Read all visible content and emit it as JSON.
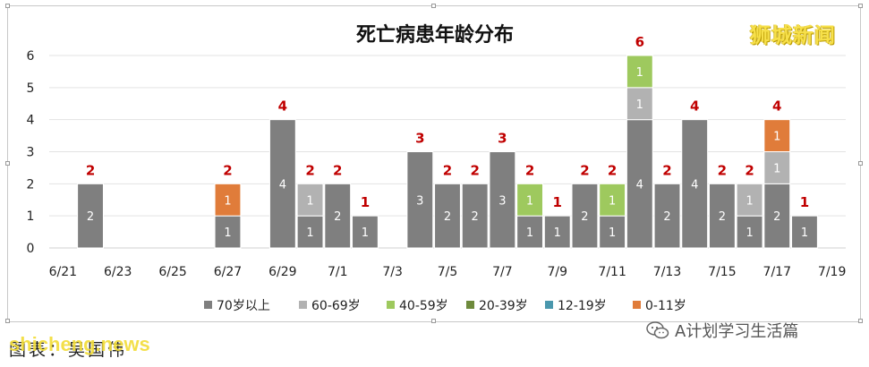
{
  "brand": "狮城新闻",
  "watermark_url": "shicheng.news",
  "source": "图表：吴国伟",
  "wechat_label": "A计划学习生活篇",
  "colors": {
    "70岁以上": "#7f7f7f",
    "60-69岁": "#b2b2b2",
    "40-59岁": "#9ec95e",
    "20-39岁": "#6e8a3c",
    "12-19岁": "#4a97ad",
    "0-11岁": "#e07c3a",
    "total_label": "#c00000"
  },
  "chart_data": {
    "type": "bar",
    "stacked": true,
    "title": "死亡病患年龄分布",
    "ylim": [
      0,
      6
    ],
    "yticks": [
      "0",
      "1",
      "2",
      "3",
      "4",
      "5",
      "6"
    ],
    "categories": [
      "6/21",
      "6/22",
      "6/23",
      "6/24",
      "6/25",
      "6/26",
      "6/27",
      "6/28",
      "6/29",
      "6/30",
      "7/1",
      "7/2",
      "7/3",
      "7/4",
      "7/5",
      "7/6",
      "7/7",
      "7/8",
      "7/9",
      "7/10",
      "7/11",
      "7/12",
      "7/13",
      "7/14",
      "7/15",
      "7/16",
      "7/17",
      "7/18",
      "7/19"
    ],
    "xtick_labels": [
      "6/21",
      "6/23",
      "6/25",
      "6/27",
      "6/29",
      "7/1",
      "7/3",
      "7/5",
      "7/7",
      "7/9",
      "7/11",
      "7/13",
      "7/15",
      "7/17",
      "7/19"
    ],
    "series": [
      {
        "name": "70岁以上",
        "values": [
          0,
          2,
          0,
          0,
          0,
          0,
          1,
          0,
          4,
          1,
          2,
          1,
          0,
          3,
          2,
          2,
          3,
          1,
          1,
          2,
          1,
          4,
          2,
          4,
          2,
          1,
          2,
          1,
          0
        ]
      },
      {
        "name": "60-69岁",
        "values": [
          0,
          0,
          0,
          0,
          0,
          0,
          0,
          0,
          0,
          1,
          0,
          0,
          0,
          0,
          0,
          0,
          0,
          0,
          0,
          0,
          0,
          1,
          0,
          0,
          0,
          1,
          1,
          0,
          0
        ]
      },
      {
        "name": "40-59岁",
        "values": [
          0,
          0,
          0,
          0,
          0,
          0,
          0,
          0,
          0,
          0,
          0,
          0,
          0,
          0,
          0,
          0,
          0,
          1,
          0,
          0,
          1,
          1,
          0,
          0,
          0,
          0,
          0,
          0,
          0
        ]
      },
      {
        "name": "20-39岁",
        "values": [
          0,
          0,
          0,
          0,
          0,
          0,
          0,
          0,
          0,
          0,
          0,
          0,
          0,
          0,
          0,
          0,
          0,
          0,
          0,
          0,
          0,
          0,
          0,
          0,
          0,
          0,
          0,
          0,
          0
        ]
      },
      {
        "name": "12-19岁",
        "values": [
          0,
          0,
          0,
          0,
          0,
          0,
          0,
          0,
          0,
          0,
          0,
          0,
          0,
          0,
          0,
          0,
          0,
          0,
          0,
          0,
          0,
          0,
          0,
          0,
          0,
          0,
          0,
          0,
          0
        ]
      },
      {
        "name": "0-11岁",
        "values": [
          0,
          0,
          0,
          0,
          0,
          0,
          1,
          0,
          0,
          0,
          0,
          0,
          0,
          0,
          0,
          0,
          0,
          0,
          0,
          0,
          0,
          0,
          0,
          0,
          0,
          0,
          1,
          0,
          0
        ]
      }
    ],
    "totals": [
      0,
      2,
      0,
      0,
      0,
      0,
      2,
      0,
      4,
      2,
      2,
      1,
      0,
      3,
      2,
      2,
      3,
      2,
      1,
      2,
      2,
      6,
      2,
      4,
      2,
      2,
      4,
      1,
      0
    ],
    "legend": [
      "70岁以上",
      "60-69岁",
      "40-59岁",
      "20-39岁",
      "12-19岁",
      "0-11岁"
    ],
    "legend_position": "bottom",
    "grid": true
  }
}
